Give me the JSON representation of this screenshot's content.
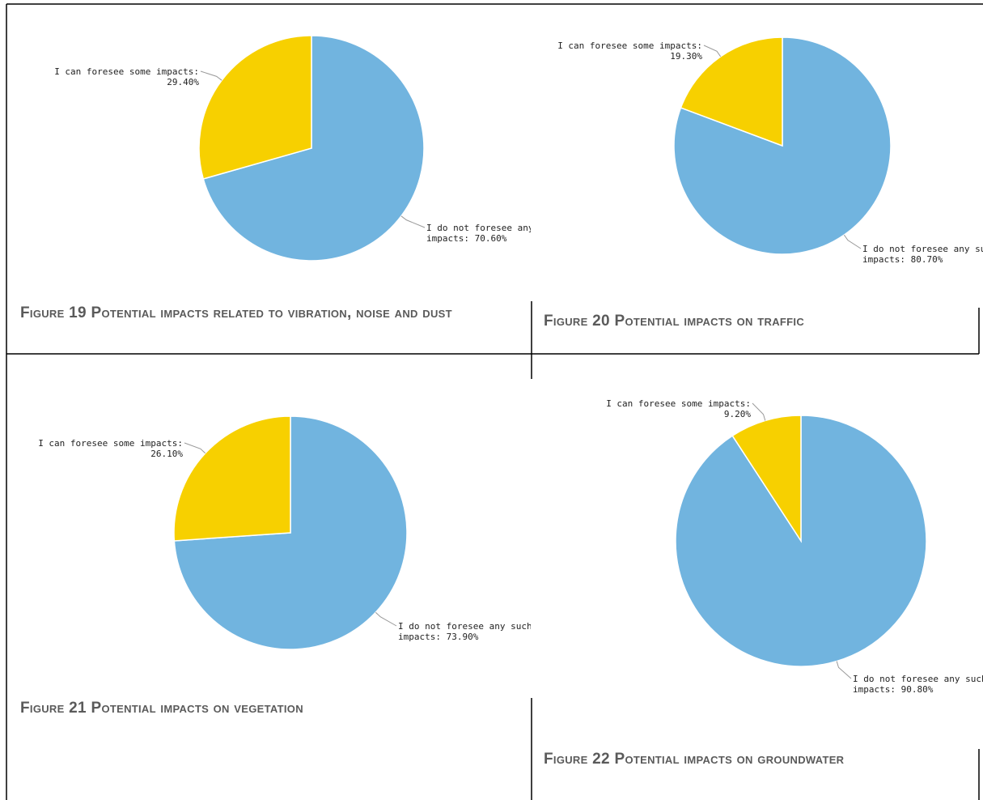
{
  "chart_data": [
    {
      "type": "pie",
      "caption": "Figure 19 Potential impacts related to vibration, noise and dust",
      "categories": [
        "I do not foresee any such impacts:",
        "I can foresee some impacts:"
      ],
      "values": [
        70.6,
        29.4
      ],
      "value_labels": [
        "70.60%",
        "29.40%"
      ],
      "colors": [
        "#71b4df",
        "#f7d000"
      ]
    },
    {
      "type": "pie",
      "caption": "Figure 20 Potential impacts on traffic",
      "categories": [
        "I do not foresee any such impacts:",
        "I can foresee some impacts:"
      ],
      "values": [
        80.7,
        19.3
      ],
      "value_labels": [
        "80.70%",
        "19.30%"
      ],
      "colors": [
        "#71b4df",
        "#f7d000"
      ]
    },
    {
      "type": "pie",
      "caption": "Figure 21 Potential impacts on vegetation",
      "categories": [
        "I do not foresee any such impacts:",
        "I can foresee some impacts:"
      ],
      "values": [
        73.9,
        26.1
      ],
      "value_labels": [
        "73.90%",
        "26.10%"
      ],
      "colors": [
        "#71b4df",
        "#f7d000"
      ]
    },
    {
      "type": "pie",
      "caption": "Figure 22 Potential impacts on groundwater",
      "categories": [
        "I do not foresee any such impacts:",
        "I can foresee some impacts:"
      ],
      "values": [
        90.8,
        9.2
      ],
      "value_labels": [
        "90.80%",
        "9.20%"
      ],
      "colors": [
        "#71b4df",
        "#f7d000"
      ]
    }
  ]
}
